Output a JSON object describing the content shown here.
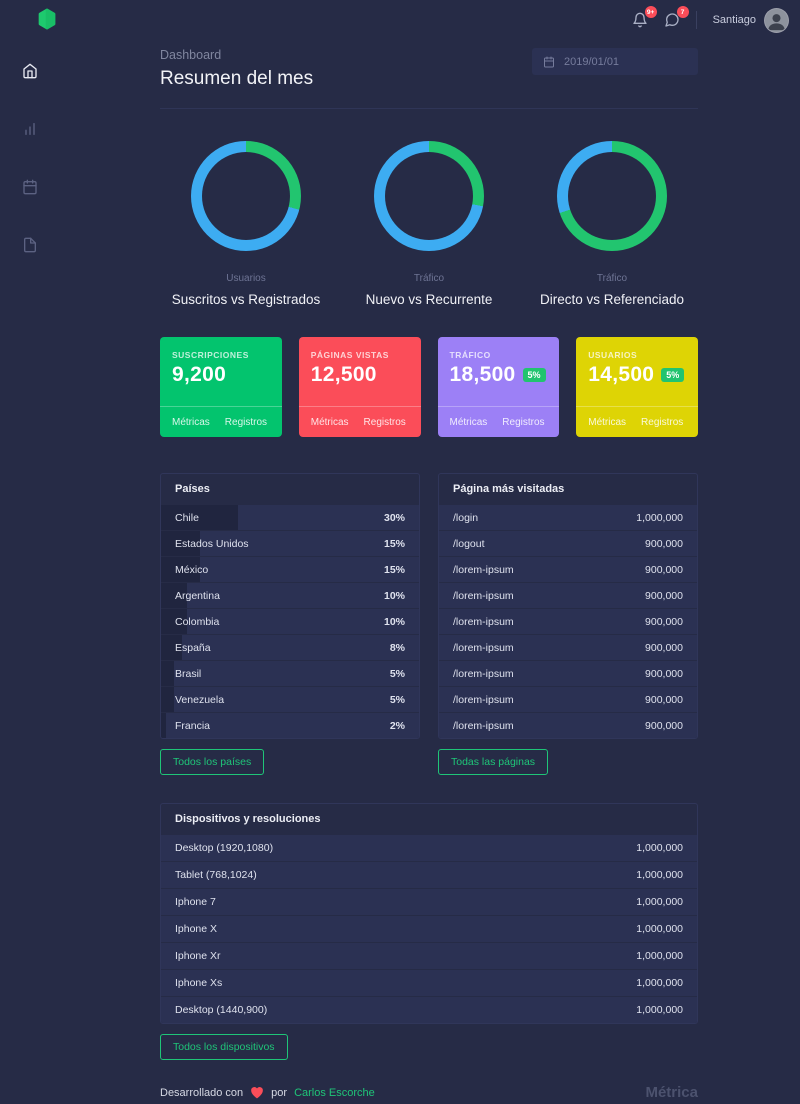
{
  "colors": {
    "background": "#262b46",
    "panel_row": "#2b3153",
    "accent_green": "#1fc578",
    "donut_green": "#22c56f",
    "donut_blue": "#3dacf2",
    "badge_red": "#fb4d59"
  },
  "topbar": {
    "user_name": "Santiago",
    "bell_badge": "9+",
    "chat_badge": "7"
  },
  "sidebar": {
    "items": [
      {
        "icon": "home",
        "active": true
      },
      {
        "icon": "bar-chart",
        "active": false
      },
      {
        "icon": "calendar",
        "active": false
      },
      {
        "icon": "file",
        "active": false
      }
    ]
  },
  "header": {
    "breadcrumb": "Dashboard",
    "title": "Resumen del mes",
    "date_value": "2019/01/01"
  },
  "donuts": [
    {
      "group": "Usuarios",
      "title": "Suscritos vs Registrados",
      "green_pct": 29,
      "blue_pct": 71
    },
    {
      "group": "Tráfico",
      "title": "Nuevo vs Recurrente",
      "green_pct": 28,
      "blue_pct": 72
    },
    {
      "group": "Tráfico",
      "title": "Directo vs Referenciado",
      "green_pct": 70,
      "blue_pct": 30
    }
  ],
  "cards": [
    {
      "label": "Suscripciones",
      "value": "9,200",
      "badge": "",
      "color": "#03c46e",
      "links": [
        "Métricas",
        "Registros"
      ]
    },
    {
      "label": "Páginas vistas",
      "value": "12,500",
      "badge": "",
      "color": "#fb4d59",
      "links": [
        "Métricas",
        "Registros"
      ]
    },
    {
      "label": "Tráfico",
      "value": "18,500",
      "badge": "5%",
      "color": "#9c80f6",
      "links": [
        "Métricas",
        "Registros"
      ]
    },
    {
      "label": "Usuarios",
      "value": "14,500",
      "badge": "5%",
      "color": "#ded405",
      "links": [
        "Métricas",
        "Registros"
      ]
    }
  ],
  "countries_table": {
    "title": "Países",
    "button": "Todos los países",
    "rows": [
      {
        "label": "Chile",
        "value": "30%",
        "pct": 30
      },
      {
        "label": "Estados Unidos",
        "value": "15%",
        "pct": 15
      },
      {
        "label": "México",
        "value": "15%",
        "pct": 15
      },
      {
        "label": "Argentina",
        "value": "10%",
        "pct": 10
      },
      {
        "label": "Colombia",
        "value": "10%",
        "pct": 10
      },
      {
        "label": "España",
        "value": "8%",
        "pct": 8
      },
      {
        "label": "Brasil",
        "value": "5%",
        "pct": 5
      },
      {
        "label": "Venezuela",
        "value": "5%",
        "pct": 5
      },
      {
        "label": "Francia",
        "value": "2%",
        "pct": 2
      }
    ]
  },
  "pages_table": {
    "title": "Página más visitadas",
    "button": "Todas las páginas",
    "rows": [
      {
        "label": "/login",
        "value": "1,000,000"
      },
      {
        "label": "/logout",
        "value": "900,000"
      },
      {
        "label": "/lorem-ipsum",
        "value": "900,000"
      },
      {
        "label": "/lorem-ipsum",
        "value": "900,000"
      },
      {
        "label": "/lorem-ipsum",
        "value": "900,000"
      },
      {
        "label": "/lorem-ipsum",
        "value": "900,000"
      },
      {
        "label": "/lorem-ipsum",
        "value": "900,000"
      },
      {
        "label": "/lorem-ipsum",
        "value": "900,000"
      },
      {
        "label": "/lorem-ipsum",
        "value": "900,000"
      }
    ]
  },
  "devices_table": {
    "title": "Dispositivos y resoluciones",
    "button": "Todos los dispositivos",
    "rows": [
      {
        "label": "Desktop (1920,1080)",
        "value": "1,000,000"
      },
      {
        "label": "Tablet (768,1024)",
        "value": "1,000,000"
      },
      {
        "label": "Iphone 7",
        "value": "1,000,000"
      },
      {
        "label": "Iphone X",
        "value": "1,000,000"
      },
      {
        "label": "Iphone Xr",
        "value": "1,000,000"
      },
      {
        "label": "Iphone Xs",
        "value": "1,000,000"
      },
      {
        "label": "Desktop (1440,900)",
        "value": "1,000,000"
      }
    ]
  },
  "footer": {
    "pre": "Desarrollado con",
    "post": "por",
    "author": "Carlos Escorche",
    "brand": "Métrica"
  },
  "chart_data": [
    {
      "type": "pie",
      "title": "Suscritos vs Registrados",
      "subtitle": "Usuarios",
      "categories": [
        "Suscritos",
        "Registrados"
      ],
      "values": [
        29,
        71
      ],
      "colors": [
        "#22c56f",
        "#3dacf2"
      ],
      "unit": "%"
    },
    {
      "type": "pie",
      "title": "Nuevo vs Recurrente",
      "subtitle": "Tráfico",
      "categories": [
        "Nuevo",
        "Recurrente"
      ],
      "values": [
        28,
        72
      ],
      "colors": [
        "#22c56f",
        "#3dacf2"
      ],
      "unit": "%"
    },
    {
      "type": "pie",
      "title": "Directo vs Referenciado",
      "subtitle": "Tráfico",
      "categories": [
        "Directo",
        "Referenciado"
      ],
      "values": [
        70,
        30
      ],
      "colors": [
        "#22c56f",
        "#3dacf2"
      ],
      "unit": "%"
    }
  ]
}
